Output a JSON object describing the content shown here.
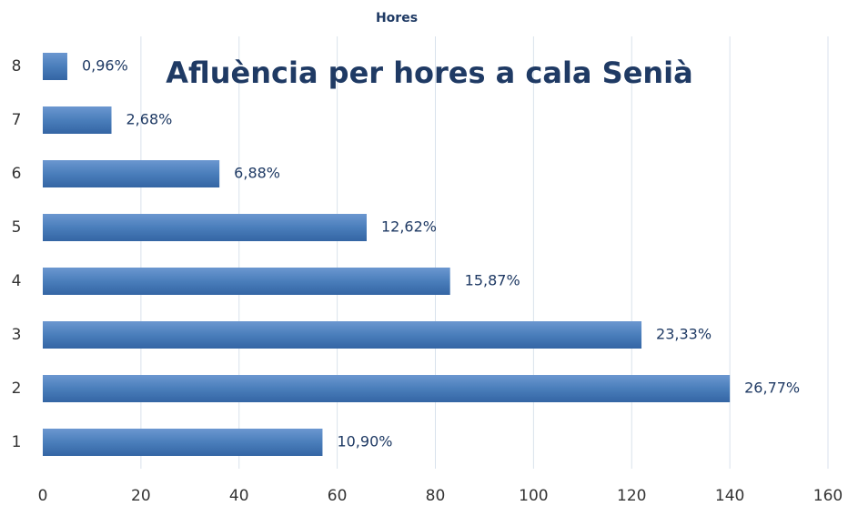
{
  "chart_data": {
    "type": "barh",
    "header": "Hores",
    "title": "Afluència per hores a cala Senià",
    "categories": [
      "1",
      "2",
      "3",
      "4",
      "5",
      "6",
      "7",
      "8"
    ],
    "values": [
      57,
      140,
      122,
      83,
      66,
      36,
      14,
      5
    ],
    "percent_labels": [
      "10,90%",
      "26,77%",
      "23,33%",
      "15,87%",
      "12,62%",
      "6,88%",
      "2,68%",
      "0,96%"
    ],
    "color": "#4a7ebb",
    "xlim": [
      0,
      160
    ],
    "xticks": [
      0,
      20,
      40,
      60,
      80,
      100,
      120,
      140,
      160
    ],
    "grid": true
  }
}
